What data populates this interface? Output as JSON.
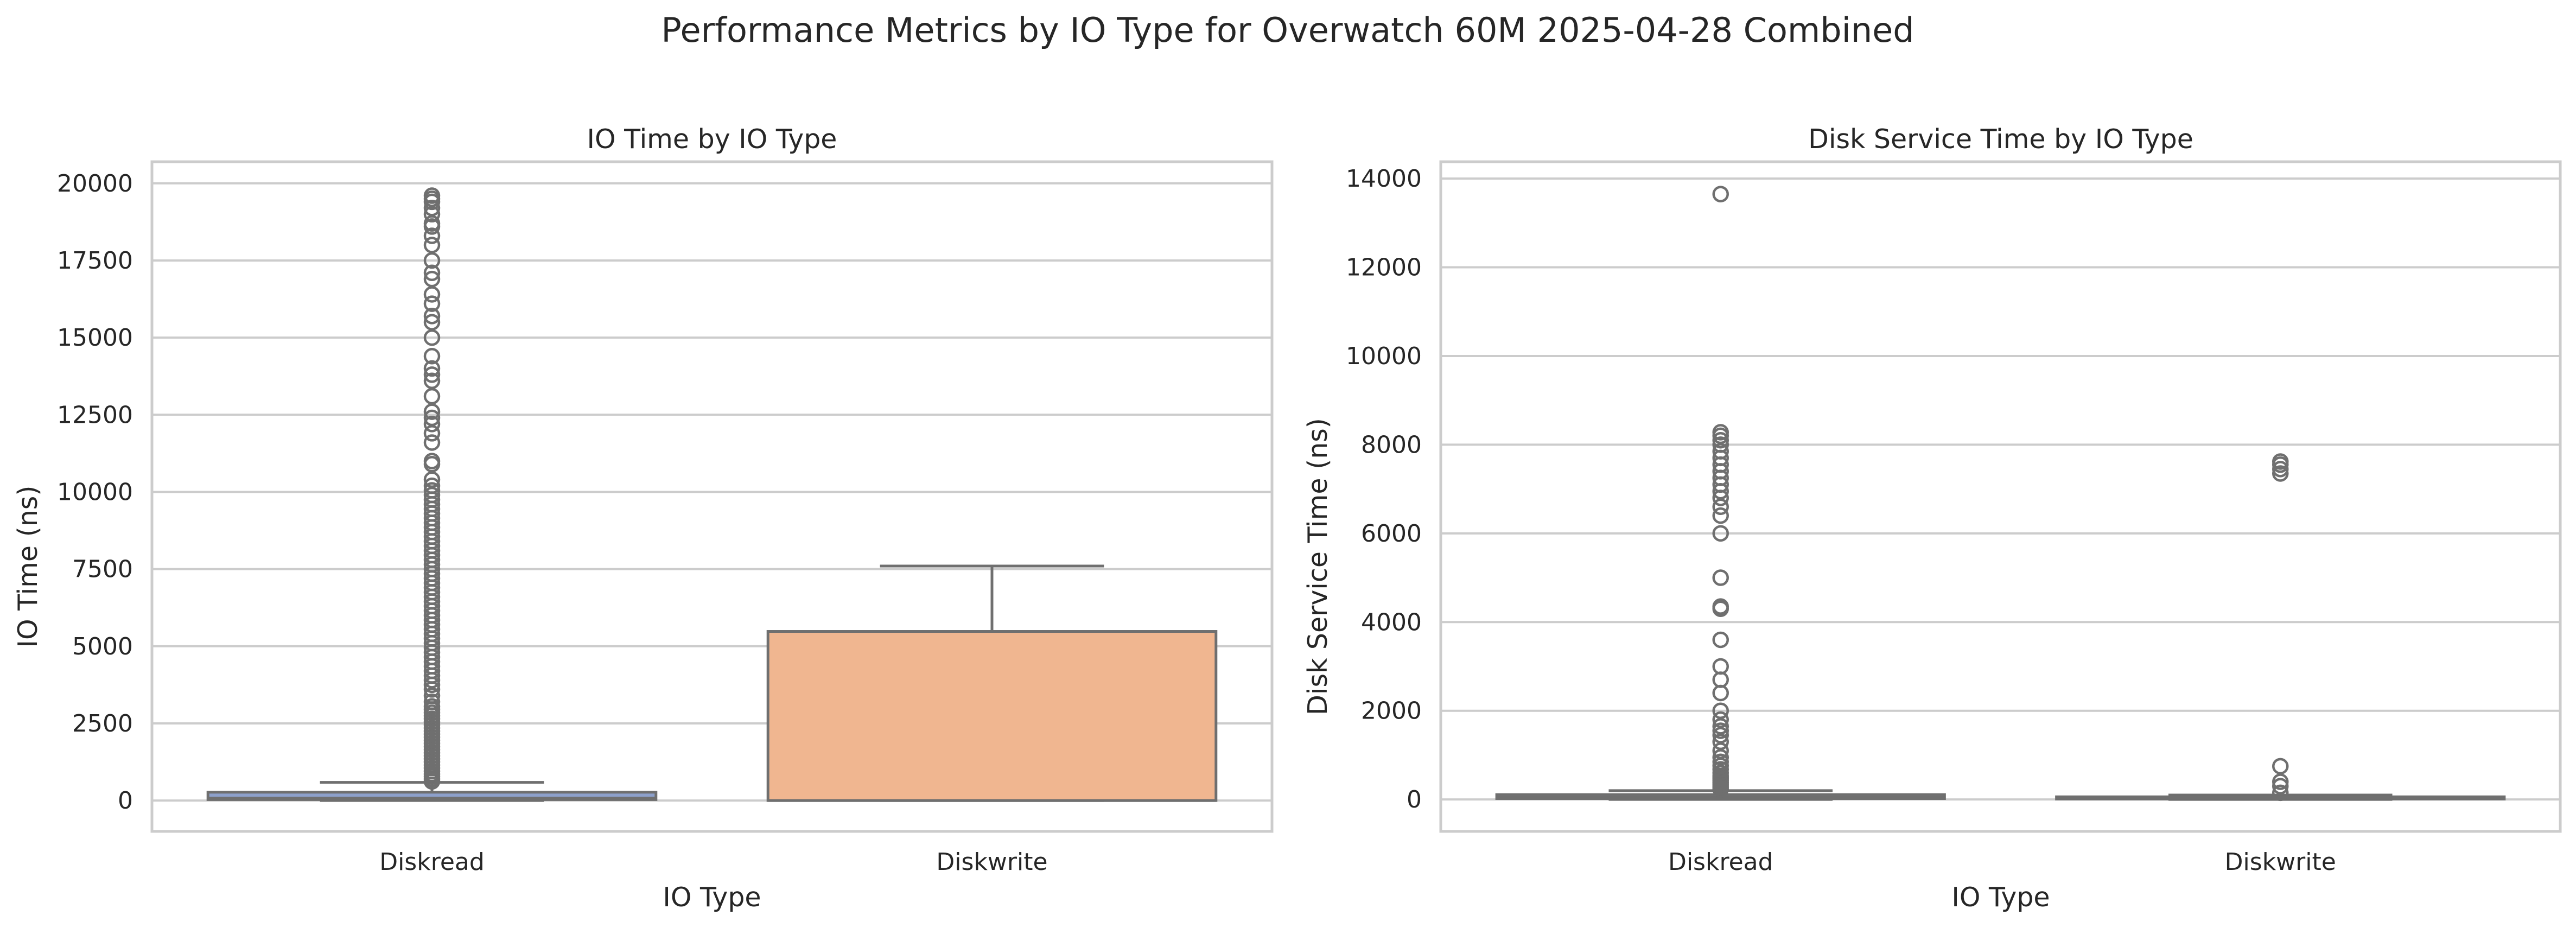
{
  "figure": {
    "title": "Performance Metrics by IO Type for Overwatch 60M 2025-04-28 Combined"
  },
  "chart_data": [
    {
      "type": "box",
      "title": "IO Time by IO Type",
      "xlabel": "IO Type",
      "ylabel": "IO Time (ns)",
      "categories": [
        "Diskread",
        "Diskwrite"
      ],
      "ylim": [
        -1000,
        20700
      ],
      "yticks": [
        0,
        2500,
        5000,
        7500,
        10000,
        12500,
        15000,
        17500,
        20000
      ],
      "grid": true,
      "boxes": [
        {
          "category": "Diskread",
          "color": "#8da0cb",
          "whislo": 0,
          "q1": 30,
          "median": 80,
          "q3": 270,
          "whishi": 590,
          "fliers": [
            620,
            700,
            780,
            860,
            950,
            1050,
            1150,
            1250,
            1350,
            1450,
            1550,
            1650,
            1750,
            1850,
            1950,
            2050,
            2150,
            2250,
            2350,
            2450,
            2550,
            2650,
            2750,
            2850,
            2950,
            3050,
            3200,
            3400,
            3600,
            3750,
            3900,
            4050,
            4200,
            4350,
            4500,
            4650,
            4800,
            4950,
            5100,
            5250,
            5400,
            5550,
            5700,
            5850,
            6000,
            6150,
            6300,
            6450,
            6600,
            6750,
            6900,
            7050,
            7200,
            7350,
            7500,
            7650,
            7800,
            7950,
            8100,
            8250,
            8400,
            8550,
            8700,
            8850,
            9000,
            9150,
            9300,
            9450,
            9600,
            9750,
            9900,
            10050,
            10200,
            10400,
            10900,
            11000,
            11600,
            11900,
            12200,
            12400,
            12600,
            13100,
            13600,
            13800,
            14000,
            14400,
            15000,
            15500,
            15700,
            16100,
            16400,
            16900,
            17100,
            17500,
            18000,
            18300,
            18600,
            18700,
            19000,
            19200,
            19400,
            19500,
            19600
          ]
        },
        {
          "category": "Diskwrite",
          "color": "#f0b690",
          "whislo": 0,
          "q1": 0,
          "median": 0,
          "q3": 5480,
          "whishi": 7600,
          "fliers": []
        }
      ]
    },
    {
      "type": "box",
      "title": "Disk Service Time by IO Type",
      "xlabel": "IO Type",
      "ylabel": "Disk Service Time (ns)",
      "categories": [
        "Diskread",
        "Diskwrite"
      ],
      "ylim": [
        -720,
        14380
      ],
      "yticks": [
        0,
        2000,
        4000,
        6000,
        8000,
        10000,
        12000,
        14000
      ],
      "grid": true,
      "boxes": [
        {
          "category": "Diskread",
          "color": "#8da0cb",
          "whislo": 0,
          "q1": 20,
          "median": 50,
          "q3": 110,
          "whishi": 200,
          "fliers": [
            230,
            280,
            330,
            380,
            430,
            480,
            530,
            600,
            680,
            760,
            850,
            950,
            1100,
            1300,
            1450,
            1550,
            1650,
            1800,
            2000,
            2400,
            2700,
            3000,
            3600,
            4300,
            4350,
            5000,
            6000,
            6400,
            6600,
            6800,
            6950,
            7100,
            7250,
            7400,
            7550,
            7700,
            7850,
            8000,
            8100,
            8200,
            8280,
            13650
          ]
        },
        {
          "category": "Diskwrite",
          "color": "#f0b690",
          "whislo": 0,
          "q1": 10,
          "median": 30,
          "q3": 60,
          "whishi": 100,
          "fliers": [
            150,
            300,
            400,
            750,
            7350,
            7450,
            7550,
            7620
          ]
        }
      ]
    }
  ]
}
